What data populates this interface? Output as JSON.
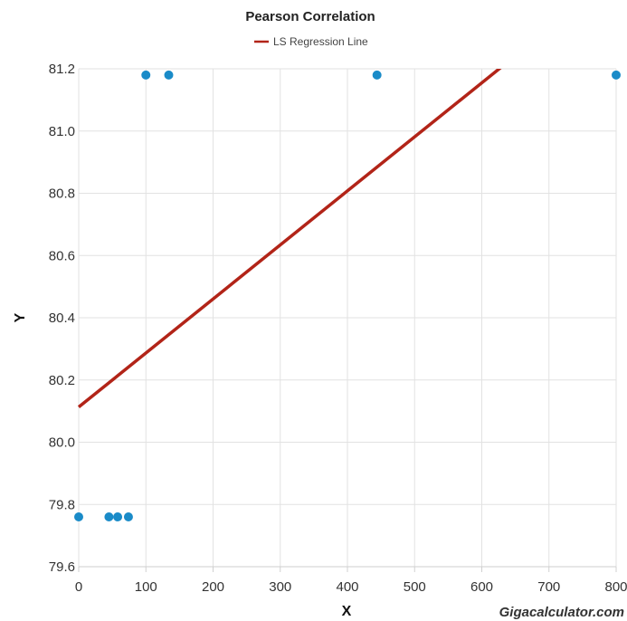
{
  "chart_data": {
    "type": "scatter",
    "title": "Pearson Correlation",
    "xlabel": "X",
    "ylabel": "Y",
    "xlim": [
      0,
      800
    ],
    "ylim": [
      79.6,
      81.2
    ],
    "x_ticks": [
      "0",
      "100",
      "200",
      "300",
      "400",
      "500",
      "600",
      "700",
      "800"
    ],
    "y_ticks": [
      "79.6",
      "79.8",
      "80.0",
      "80.2",
      "80.4",
      "80.6",
      "80.8",
      "81.0",
      "81.2"
    ],
    "grid": true,
    "legend": {
      "position": "top",
      "entries": [
        "LS Regression Line"
      ]
    },
    "series": [
      {
        "type": "scatter",
        "color": "#1a8bc8",
        "points": [
          {
            "x": 0,
            "y": 79.76
          },
          {
            "x": 45,
            "y": 79.76
          },
          {
            "x": 58,
            "y": 79.76
          },
          {
            "x": 74,
            "y": 79.76
          },
          {
            "x": 100,
            "y": 81.18
          },
          {
            "x": 134,
            "y": 81.18
          },
          {
            "x": 444,
            "y": 81.18
          },
          {
            "x": 800,
            "y": 81.18
          }
        ]
      },
      {
        "type": "line",
        "name": "LS Regression Line",
        "color": "#b22418",
        "points": [
          {
            "x": 0,
            "y": 80.113
          },
          {
            "x": 649,
            "y": 81.24
          }
        ]
      }
    ],
    "watermark": "Gigacalculator.com"
  }
}
